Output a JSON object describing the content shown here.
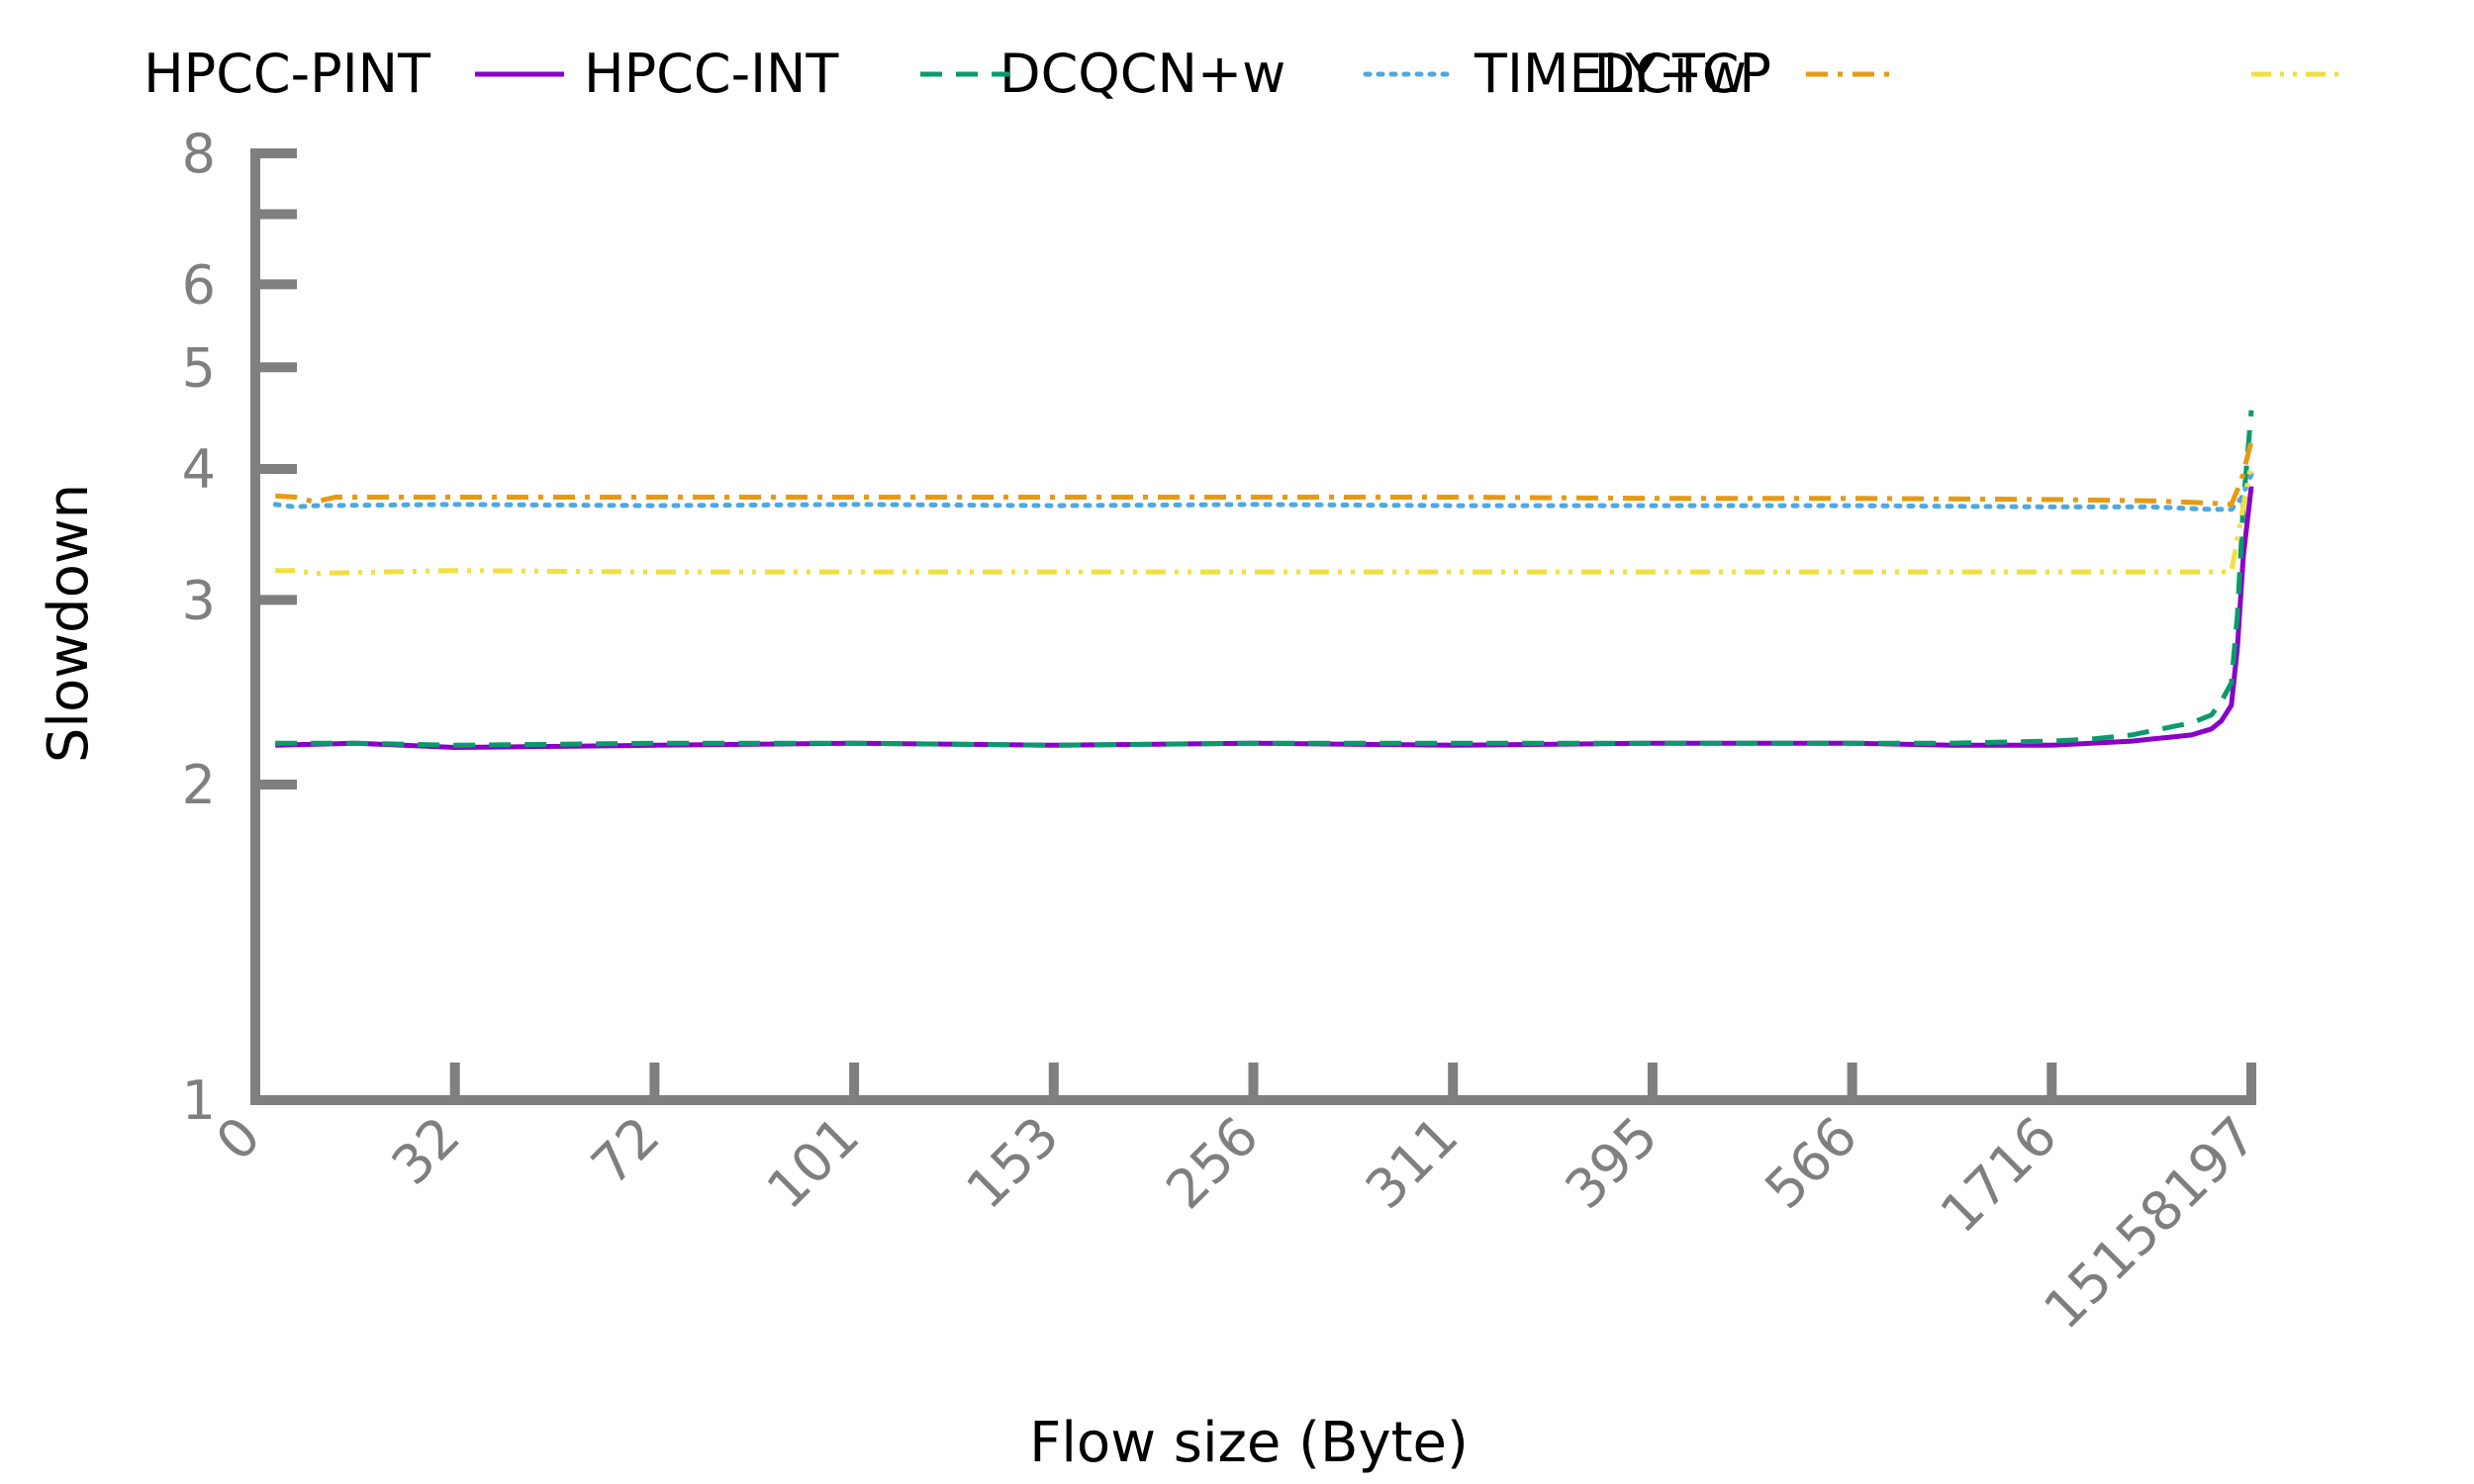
{
  "chart_data": {
    "type": "line",
    "title": "",
    "xlabel": "Flow size (Byte)",
    "ylabel": "Slowdown",
    "y_scale": "log",
    "ylim": [
      1,
      8
    ],
    "y_ticks": [
      {
        "value": 1,
        "label": "1"
      },
      {
        "value": 2,
        "label": "2"
      },
      {
        "value": 3,
        "label": "3"
      },
      {
        "value": 4,
        "label": "4"
      },
      {
        "value": 5,
        "label": "5"
      },
      {
        "value": 6,
        "label": "6"
      },
      {
        "value": 8,
        "label": "8"
      }
    ],
    "y_minor_ticks": [
      7
    ],
    "x_tick_labels": [
      "0",
      "32",
      "72",
      "101",
      "153",
      "256",
      "311",
      "395",
      "566",
      "1716",
      "15158197"
    ],
    "x_range_percentile": [
      0,
      100
    ],
    "grid": false,
    "legend_position": "top",
    "series": [
      {
        "name": "HPCC-PINT",
        "color": "#7f7f7f",
        "style": "none",
        "points": []
      },
      {
        "name": "HPCC-INT",
        "color": "#8a00c8",
        "style": "solid",
        "points": [
          [
            1,
            2.18
          ],
          [
            5,
            2.19
          ],
          [
            10,
            2.17
          ],
          [
            20,
            2.18
          ],
          [
            30,
            2.19
          ],
          [
            40,
            2.18
          ],
          [
            50,
            2.19
          ],
          [
            60,
            2.18
          ],
          [
            70,
            2.19
          ],
          [
            80,
            2.19
          ],
          [
            85,
            2.18
          ],
          [
            90,
            2.18
          ],
          [
            92,
            2.19
          ],
          [
            94,
            2.2
          ],
          [
            95,
            2.21
          ],
          [
            96,
            2.22
          ],
          [
            97,
            2.23
          ],
          [
            98,
            2.26
          ],
          [
            98.5,
            2.3
          ],
          [
            99,
            2.38
          ],
          [
            99.3,
            2.7
          ],
          [
            99.6,
            3.3
          ],
          [
            100,
            3.85
          ]
        ]
      },
      {
        "name": "DCQCN+w",
        "color": "#0a9a6e",
        "style": "dashed",
        "points": [
          [
            1,
            2.19
          ],
          [
            5,
            2.19
          ],
          [
            10,
            2.18
          ],
          [
            20,
            2.19
          ],
          [
            30,
            2.19
          ],
          [
            40,
            2.18
          ],
          [
            50,
            2.19
          ],
          [
            60,
            2.19
          ],
          [
            70,
            2.19
          ],
          [
            80,
            2.19
          ],
          [
            85,
            2.19
          ],
          [
            90,
            2.2
          ],
          [
            92,
            2.21
          ],
          [
            94,
            2.23
          ],
          [
            95,
            2.25
          ],
          [
            96,
            2.27
          ],
          [
            97,
            2.29
          ],
          [
            98,
            2.33
          ],
          [
            98.5,
            2.4
          ],
          [
            99,
            2.5
          ],
          [
            99.3,
            2.9
          ],
          [
            99.6,
            3.7
          ],
          [
            100,
            4.55
          ]
        ]
      },
      {
        "name": "TIMELY+w",
        "color": "#4fa8e0",
        "style": "dotted",
        "points": [
          [
            1,
            3.7
          ],
          [
            2,
            3.68
          ],
          [
            3,
            3.69
          ],
          [
            10,
            3.7
          ],
          [
            20,
            3.69
          ],
          [
            30,
            3.7
          ],
          [
            40,
            3.69
          ],
          [
            50,
            3.7
          ],
          [
            60,
            3.69
          ],
          [
            70,
            3.69
          ],
          [
            80,
            3.69
          ],
          [
            90,
            3.68
          ],
          [
            95,
            3.68
          ],
          [
            98,
            3.66
          ],
          [
            99,
            3.66
          ],
          [
            99.5,
            3.75
          ],
          [
            100,
            3.95
          ]
        ]
      },
      {
        "name": "DCTCP",
        "color": "#e69a12",
        "style": "dashdot",
        "points": [
          [
            1,
            3.77
          ],
          [
            2,
            3.76
          ],
          [
            3,
            3.72
          ],
          [
            4,
            3.76
          ],
          [
            10,
            3.76
          ],
          [
            20,
            3.76
          ],
          [
            30,
            3.76
          ],
          [
            40,
            3.76
          ],
          [
            50,
            3.76
          ],
          [
            60,
            3.76
          ],
          [
            70,
            3.75
          ],
          [
            80,
            3.75
          ],
          [
            90,
            3.74
          ],
          [
            95,
            3.73
          ],
          [
            98,
            3.71
          ],
          [
            99,
            3.7
          ],
          [
            99.5,
            3.9
          ],
          [
            100,
            4.25
          ]
        ]
      },
      {
        "name": "",
        "color": "#f0e040",
        "style": "dashdotdot",
        "points": [
          [
            1,
            3.2
          ],
          [
            2,
            3.2
          ],
          [
            3,
            3.18
          ],
          [
            10,
            3.2
          ],
          [
            20,
            3.19
          ],
          [
            30,
            3.19
          ],
          [
            40,
            3.19
          ],
          [
            50,
            3.19
          ],
          [
            60,
            3.19
          ],
          [
            70,
            3.19
          ],
          [
            80,
            3.19
          ],
          [
            90,
            3.19
          ],
          [
            95,
            3.19
          ],
          [
            98,
            3.19
          ],
          [
            99,
            3.19
          ],
          [
            99.5,
            3.6
          ],
          [
            100,
            4.05
          ]
        ]
      }
    ],
    "legend_entries": [
      {
        "name": "HPCC-PINT",
        "color": "#7f7f7f",
        "style": "none"
      },
      {
        "name": "HPCC-INT",
        "color": "#8a00c8",
        "style": "solid"
      },
      {
        "name": "DCQCN+w",
        "color": "#0a9a6e",
        "style": "dashed"
      },
      {
        "name": "TIMELY+w",
        "color": "#4fa8e0",
        "style": "dotted"
      },
      {
        "name": "DCTCP",
        "color": "#e69a12",
        "style": "dashdot"
      },
      {
        "name": "",
        "color": "#f0e040",
        "style": "dashdotdot"
      }
    ]
  }
}
